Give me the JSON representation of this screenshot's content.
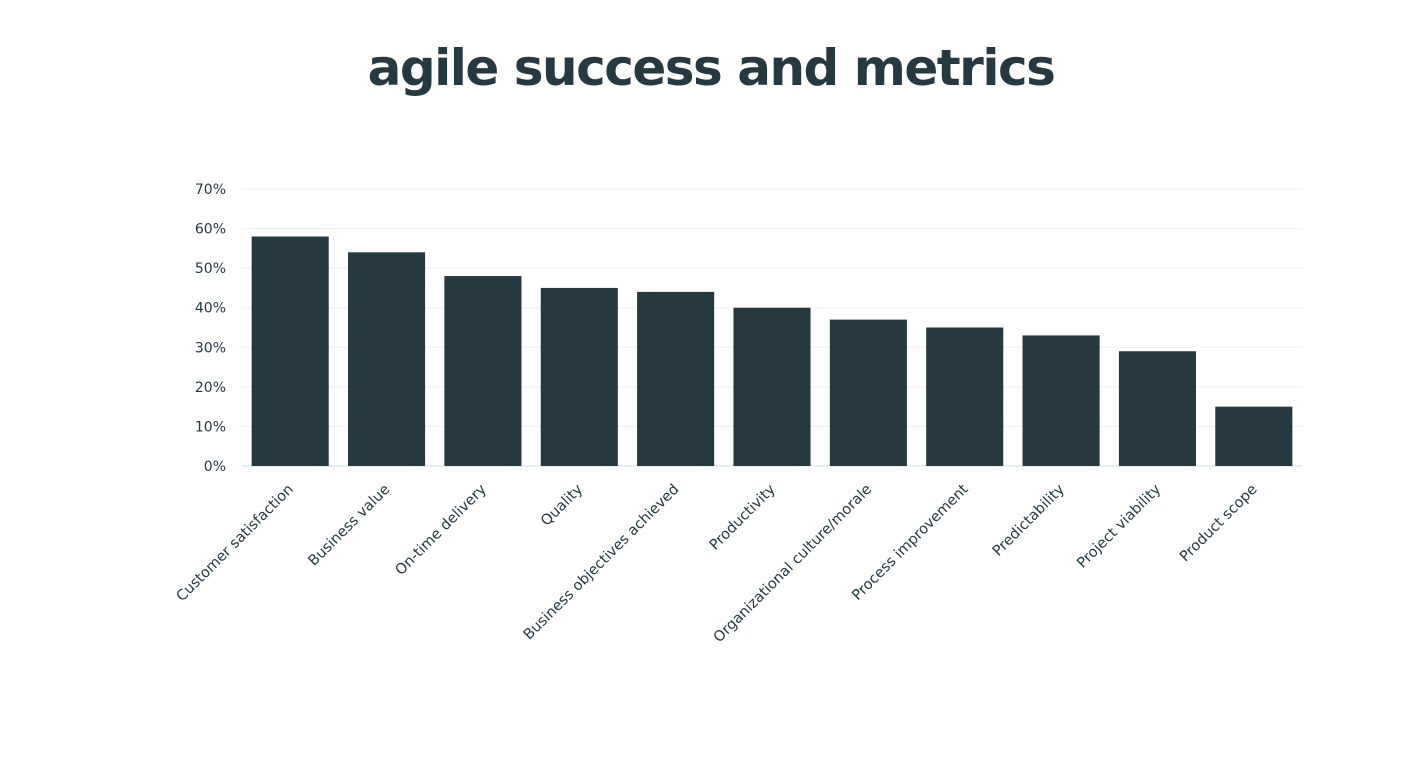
{
  "chart_data": {
    "type": "bar",
    "title": "agile success and metrics",
    "xlabel": "",
    "ylabel": "",
    "categories": [
      "Customer satisfaction",
      "Business value",
      "On-time delivery",
      "Quality",
      "Business objectives achieved",
      "Productivity",
      "Organizational culture/morale",
      "Process improvement",
      "Predictability",
      "Project viability",
      "Product scope"
    ],
    "values": [
      58,
      54,
      48,
      45,
      44,
      40,
      37,
      35,
      33,
      29,
      15
    ],
    "value_format": "percent",
    "ylim": [
      0,
      70
    ],
    "y_ticks": [
      "0%",
      "10%",
      "20%",
      "30%",
      "40%",
      "50%",
      "60%",
      "70%"
    ],
    "grid": true,
    "legend": "none",
    "bar_color": "#263840",
    "grid_color": "#edf0f2",
    "text_color": "#263840"
  }
}
